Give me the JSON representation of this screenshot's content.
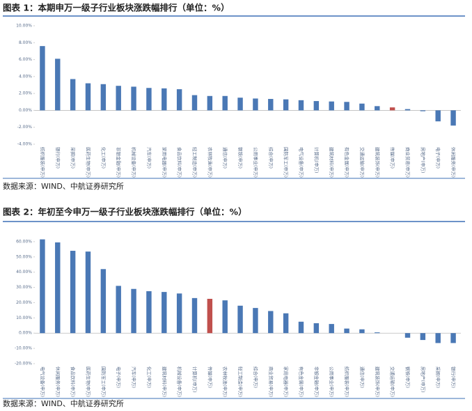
{
  "chart_data": [
    {
      "type": "bar",
      "title": "图表 1：本期申万一级子行业板块涨跌幅排行（单位：%）",
      "categories": [
        "纺织服装(申万)",
        "银行(申万)",
        "采掘(申万)",
        "医药生物(申万)",
        "化工(申万)",
        "非银金融(申万)",
        "机械设备(申万)",
        "汽车(申万)",
        "家用电器(申万)",
        "食品饮料(申万)",
        "轻工制造(申万)",
        "农林牧渔(申万)",
        "通信(申万)",
        "钢铁(申万)",
        "公用事业(申万)",
        "综合(申万)",
        "国防军工(申万)",
        "电气设备(申万)",
        "计算机(申万)",
        "建筑材料(申万)",
        "有色金属(申万)",
        "交通运输(申万)",
        "建筑装饰(申万)",
        "传媒(申万)",
        "商业贸易(申万)",
        "房地产(申万)",
        "电子(申万)",
        "休闲服务(申万)"
      ],
      "values": [
        7.6,
        6.1,
        3.7,
        3.2,
        3.1,
        2.9,
        2.8,
        2.65,
        2.6,
        2.5,
        1.8,
        1.7,
        1.7,
        1.5,
        1.4,
        1.35,
        1.3,
        1.2,
        1.1,
        1.05,
        1.0,
        0.8,
        0.5,
        0.35,
        0.15,
        -0.1,
        -1.3,
        -1.8
      ],
      "colors": [
        "#4a78b5",
        "#4a78b5",
        "#4a78b5",
        "#4a78b5",
        "#4a78b5",
        "#4a78b5",
        "#4a78b5",
        "#4a78b5",
        "#4a78b5",
        "#4a78b5",
        "#4a78b5",
        "#4a78b5",
        "#4a78b5",
        "#4a78b5",
        "#4a78b5",
        "#4a78b5",
        "#4a78b5",
        "#4a78b5",
        "#4a78b5",
        "#4a78b5",
        "#4a78b5",
        "#4a78b5",
        "#4a78b5",
        "#c0504d",
        "#4a78b5",
        "#4a78b5",
        "#4a78b5",
        "#4a78b5"
      ],
      "ylim": [
        -4,
        10
      ],
      "yticks": [
        {
          "value": -4,
          "label": "-4.00%"
        },
        {
          "value": -2,
          "label": "-2.00%"
        },
        {
          "value": 0,
          "label": "0.00%"
        },
        {
          "value": 2,
          "label": "2.00%"
        },
        {
          "value": 4,
          "label": "4.00%"
        },
        {
          "value": 6,
          "label": "6.00%"
        },
        {
          "value": 8,
          "label": "8.00%"
        },
        {
          "value": 10,
          "label": "10.00%"
        }
      ],
      "source": "数据来源：WIND、中航证券研究所"
    },
    {
      "type": "bar",
      "title": "图表 2：年初至今申万一级子行业板块涨跌幅排行（单位：%）",
      "categories": [
        "电气设备(申万)",
        "休闲服务(申万)",
        "食品饮料(申万)",
        "医药生物(申万)",
        "国防军工(申万)",
        "电子(申万)",
        "汽车(申万)",
        "化工(申万)",
        "建筑材料(申万)",
        "机械设备(申万)",
        "计算机(申万)",
        "传媒(申万)",
        "农林牧渔(申万)",
        "轻工制造(申万)",
        "综合(申万)",
        "商业贸易(申万)",
        "家用电器(申万)",
        "有色金属(申万)",
        "非银金融(申万)",
        "公用事业(申万)",
        "纺织服装(申万)",
        "通信(申万)",
        "建筑装饰(申万)",
        "交通运输(申万)",
        "钢铁(申万)",
        "房地产(申万)",
        "采掘(申万)",
        "银行(申万)"
      ],
      "values": [
        61.5,
        59.5,
        54,
        53.5,
        42,
        31,
        29,
        27.5,
        27,
        26,
        23,
        22.5,
        21.5,
        18,
        16.5,
        14.5,
        13,
        7.5,
        6.5,
        6,
        3,
        2.5,
        0.5,
        0,
        -3,
        -4.5,
        -6.5,
        -6.5
      ],
      "colors": [
        "#4a78b5",
        "#4a78b5",
        "#4a78b5",
        "#4a78b5",
        "#4a78b5",
        "#4a78b5",
        "#4a78b5",
        "#4a78b5",
        "#4a78b5",
        "#4a78b5",
        "#4a78b5",
        "#c0504d",
        "#4a78b5",
        "#4a78b5",
        "#4a78b5",
        "#4a78b5",
        "#4a78b5",
        "#4a78b5",
        "#4a78b5",
        "#4a78b5",
        "#4a78b5",
        "#4a78b5",
        "#4a78b5",
        "#4a78b5",
        "#4a78b5",
        "#4a78b5",
        "#4a78b5",
        "#4a78b5"
      ],
      "ylim": [
        -20,
        70
      ],
      "yticks": [
        {
          "value": -20,
          "label": "-20.00%"
        },
        {
          "value": -10,
          "label": "-10.00%"
        },
        {
          "value": 0,
          "label": "0.00%"
        },
        {
          "value": 10,
          "label": "10.00%"
        },
        {
          "value": 20,
          "label": "20.00%"
        },
        {
          "value": 30,
          "label": "30.00%"
        },
        {
          "value": 40,
          "label": "40.00%"
        },
        {
          "value": 50,
          "label": "50.00%"
        },
        {
          "value": 60,
          "label": "60.00%"
        }
      ],
      "source": "数据来源：WIND、中航证券研究所"
    }
  ]
}
